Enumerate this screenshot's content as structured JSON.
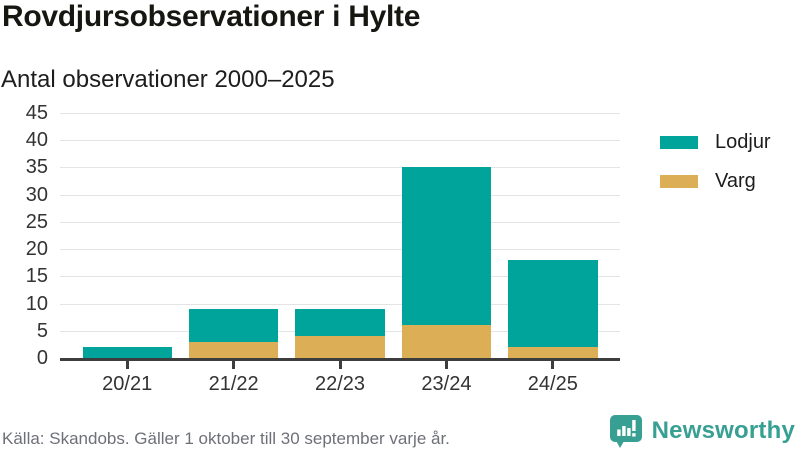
{
  "header": {
    "title": "Rovdjursobservationer i Hylte",
    "subtitle": "Antal observationer 2000–2025"
  },
  "chart_data": {
    "type": "bar",
    "stacked": true,
    "title": "Rovdjursobservationer i Hylte",
    "subtitle": "Antal observationer 2000–2025",
    "categories": [
      "20/21",
      "21/22",
      "22/23",
      "23/24",
      "24/25"
    ],
    "series": [
      {
        "name": "Lodjur",
        "color": "#00a49a",
        "values": [
          2,
          6,
          5,
          29,
          16
        ]
      },
      {
        "name": "Varg",
        "color": "#dcae55",
        "values": [
          0,
          3,
          4,
          6,
          2
        ]
      }
    ],
    "totals": [
      2,
      9,
      9,
      35,
      18
    ],
    "xlabel": "",
    "ylabel": "",
    "ylim": [
      0,
      45
    ],
    "ytick_step": 5,
    "grid": true,
    "legend_position": "right"
  },
  "footer": {
    "source": "Källa: Skandobs. Gäller 1 oktober till 30 september varje år.",
    "brand": "Newsworthy"
  },
  "colors": {
    "lodjur": "#00a49a",
    "varg": "#dcae55",
    "axis": "#3d3d3d",
    "grid": "#e4e4e4",
    "tick_label": "#333333",
    "footer_text": "#6e7078",
    "brand_teal": "#38a093"
  }
}
